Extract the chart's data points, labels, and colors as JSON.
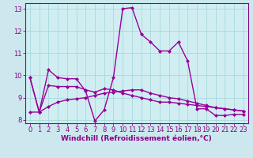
{
  "line1_x": [
    0,
    1,
    2,
    3,
    4,
    5,
    6,
    7,
    8,
    9,
    10,
    11,
    12,
    13,
    14,
    15,
    16,
    17,
    18,
    19,
    20,
    21,
    22,
    23
  ],
  "line1_y": [
    9.9,
    8.35,
    10.25,
    9.9,
    9.85,
    9.85,
    9.3,
    7.95,
    8.45,
    9.9,
    13.0,
    13.05,
    11.85,
    11.5,
    11.1,
    11.1,
    11.5,
    10.65,
    8.5,
    8.5,
    8.2,
    8.2,
    8.25,
    8.25
  ],
  "line2_x": [
    0,
    1,
    2,
    3,
    4,
    5,
    6,
    7,
    8,
    9,
    10,
    11,
    12,
    13,
    14,
    15,
    16,
    17,
    18,
    19,
    20,
    21,
    22,
    23
  ],
  "line2_y": [
    9.9,
    8.35,
    9.55,
    9.5,
    9.5,
    9.5,
    9.35,
    9.25,
    9.4,
    9.35,
    9.2,
    9.1,
    9.0,
    8.9,
    8.8,
    8.8,
    8.75,
    8.7,
    8.65,
    8.6,
    8.55,
    8.5,
    8.45,
    8.4
  ],
  "line3_x": [
    0,
    1,
    2,
    3,
    4,
    5,
    6,
    7,
    8,
    9,
    10,
    11,
    12,
    13,
    14,
    15,
    16,
    17,
    18,
    19,
    20,
    21,
    22,
    23
  ],
  "line3_y": [
    8.35,
    8.35,
    8.6,
    8.8,
    8.9,
    8.95,
    9.0,
    9.1,
    9.2,
    9.25,
    9.3,
    9.35,
    9.35,
    9.2,
    9.1,
    9.0,
    8.95,
    8.85,
    8.75,
    8.65,
    8.55,
    8.5,
    8.45,
    8.4
  ],
  "line_color": "#990099",
  "bg_color": "#cce8ee",
  "plot_bg_color": "#d0eef2",
  "grid_color": "#a8d8dc",
  "xlabel": "Windchill (Refroidissement éolien,°C)",
  "xlim": [
    -0.5,
    23.5
  ],
  "ylim": [
    7.85,
    13.25
  ],
  "yticks": [
    8,
    9,
    10,
    11,
    12,
    13
  ],
  "xticks": [
    0,
    1,
    2,
    3,
    4,
    5,
    6,
    7,
    8,
    9,
    10,
    11,
    12,
    13,
    14,
    15,
    16,
    17,
    18,
    19,
    20,
    21,
    22,
    23
  ],
  "marker": "D",
  "markersize": 2.0,
  "linewidth": 1.0,
  "xlabel_fontsize": 6.5,
  "tick_fontsize": 6.0,
  "label_color": "#880088"
}
